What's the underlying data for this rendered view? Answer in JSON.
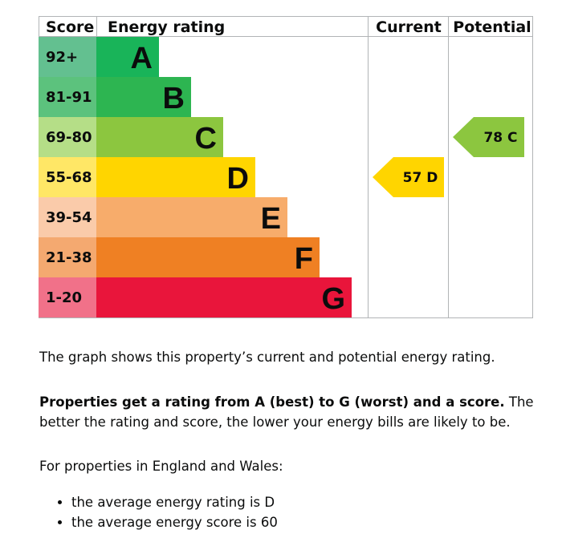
{
  "chart_data": {
    "type": "bar",
    "headers": {
      "score": "Score",
      "rating": "Energy rating",
      "current": "Current",
      "potential": "Potential"
    },
    "bands": [
      {
        "score": "92+",
        "letter": "A",
        "color": "#19b459",
        "score_bg": "#63c090"
      },
      {
        "score": "81-91",
        "letter": "B",
        "color": "#2db551",
        "score_bg": "#5cc27d"
      },
      {
        "score": "69-80",
        "letter": "C",
        "color": "#8cc63f",
        "score_bg": "#b5de87"
      },
      {
        "score": "55-68",
        "letter": "D",
        "color": "#ffd500",
        "score_bg": "#ffe766"
      },
      {
        "score": "39-54",
        "letter": "E",
        "color": "#f7ac6b",
        "score_bg": "#facbaa"
      },
      {
        "score": "21-38",
        "letter": "F",
        "color": "#ef8023",
        "score_bg": "#f4a970"
      },
      {
        "score": "1-20",
        "letter": "G",
        "color": "#e9153b",
        "score_bg": "#f17189"
      }
    ],
    "current": {
      "score": 57,
      "letter": "D",
      "label": "57  D",
      "color": "#ffd500"
    },
    "potential": {
      "score": 78,
      "letter": "C",
      "label": "78  C",
      "color": "#8cc63f"
    }
  },
  "text": {
    "intro": "The graph shows this property’s current and potential energy rating.",
    "rating_bold": "Properties get a rating from A (best) to G (worst) and a score.",
    "rating_rest": " The better the rating and score, the lower your energy bills are likely to be.",
    "region": "For properties in England and Wales:",
    "bullets": [
      "the average energy rating is D",
      "the average energy score is 60"
    ]
  }
}
